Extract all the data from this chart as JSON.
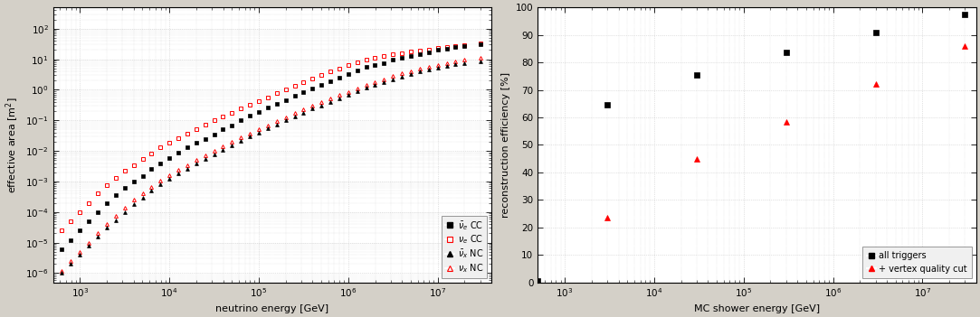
{
  "left": {
    "nue_bar_CC_x": [
      630,
      794,
      1000,
      1259,
      1585,
      1995,
      2512,
      3162,
      3981,
      5012,
      6310,
      7943,
      10000,
      12589,
      15849,
      19953,
      25119,
      31623,
      39811,
      50119,
      63096,
      79433,
      100000,
      125893,
      158489,
      199526,
      251189,
      316228,
      398107,
      501187,
      630957,
      794328,
      1000000,
      1258925,
      1584893,
      1995262,
      2511886,
      3162278,
      3981072,
      5011872,
      6309573,
      7943282,
      10000000,
      12589254,
      15848932,
      19952623,
      30000000
    ],
    "nue_bar_CC_y": [
      6e-06,
      1.2e-05,
      2.5e-05,
      5e-05,
      0.0001,
      0.0002,
      0.00035,
      0.0006,
      0.001,
      0.0015,
      0.0025,
      0.004,
      0.006,
      0.009,
      0.013,
      0.018,
      0.025,
      0.035,
      0.05,
      0.07,
      0.1,
      0.14,
      0.19,
      0.26,
      0.35,
      0.47,
      0.63,
      0.83,
      1.1,
      1.45,
      1.9,
      2.5,
      3.2,
      4.2,
      5.5,
      6.5,
      7.5,
      9.5,
      11,
      13,
      15,
      17,
      20,
      22,
      25,
      27,
      30
    ],
    "nue_CC_x": [
      630,
      794,
      1000,
      1259,
      1585,
      1995,
      2512,
      3162,
      3981,
      5012,
      6310,
      7943,
      10000,
      12589,
      15849,
      19953,
      25119,
      31623,
      39811,
      50119,
      63096,
      79433,
      100000,
      125893,
      158489,
      199526,
      251189,
      316228,
      398107,
      501187,
      630957,
      794328,
      1000000,
      1258925,
      1584893,
      1995262,
      2511886,
      3162278,
      3981072,
      5011872,
      6309573,
      7943282,
      10000000,
      12589254,
      15848932,
      19952623,
      30000000
    ],
    "nue_CC_y": [
      2.5e-05,
      5e-05,
      0.0001,
      0.0002,
      0.0004,
      0.00075,
      0.0013,
      0.0022,
      0.0035,
      0.0055,
      0.0085,
      0.013,
      0.019,
      0.027,
      0.038,
      0.053,
      0.072,
      0.1,
      0.135,
      0.18,
      0.24,
      0.32,
      0.43,
      0.57,
      0.76,
      1.0,
      1.33,
      1.75,
      2.3,
      3.0,
      3.9,
      5.0,
      6.4,
      8.1,
      10,
      11.5,
      13,
      14.5,
      16,
      17.5,
      19,
      21,
      23,
      25,
      27,
      29,
      33
    ],
    "nux_bar_NC_x": [
      630,
      794,
      1000,
      1259,
      1585,
      1995,
      2512,
      3162,
      3981,
      5012,
      6310,
      7943,
      10000,
      12589,
      15849,
      19953,
      25119,
      31623,
      39811,
      50119,
      63096,
      79433,
      100000,
      125893,
      158489,
      199526,
      251189,
      316228,
      398107,
      501187,
      630957,
      794328,
      1000000,
      1258925,
      1584893,
      1995262,
      2511886,
      3162278,
      3981072,
      5011872,
      6309573,
      7943282,
      10000000,
      12589254,
      15848932,
      19952623,
      30000000
    ],
    "nux_bar_NC_y": [
      1e-06,
      2e-06,
      4e-06,
      8e-06,
      1.6e-05,
      3e-05,
      5.5e-05,
      0.0001,
      0.00018,
      0.0003,
      0.0005,
      0.0008,
      0.0012,
      0.0018,
      0.0026,
      0.0038,
      0.0055,
      0.0078,
      0.011,
      0.015,
      0.021,
      0.029,
      0.04,
      0.055,
      0.075,
      0.1,
      0.135,
      0.18,
      0.24,
      0.31,
      0.41,
      0.54,
      0.7,
      0.9,
      1.15,
      1.45,
      1.8,
      2.2,
      2.7,
      3.3,
      3.9,
      4.6,
      5.3,
      6.0,
      6.8,
      7.5,
      8.5
    ],
    "nux_NC_x": [
      630,
      794,
      1000,
      1259,
      1585,
      1995,
      2512,
      3162,
      3981,
      5012,
      6310,
      7943,
      10000,
      12589,
      15849,
      19953,
      25119,
      31623,
      39811,
      50119,
      63096,
      79433,
      100000,
      125893,
      158489,
      199526,
      251189,
      316228,
      398107,
      501187,
      630957,
      794328,
      1000000,
      1258925,
      1584893,
      1995262,
      2511886,
      3162278,
      3981072,
      5011872,
      6309573,
      7943282,
      10000000,
      12589254,
      15848932,
      19952623,
      30000000
    ],
    "nux_NC_y": [
      1.2e-06,
      2.5e-06,
      5e-06,
      1e-05,
      2e-05,
      4e-05,
      7.5e-05,
      0.00014,
      0.00025,
      0.0004,
      0.00065,
      0.00105,
      0.0016,
      0.0024,
      0.0035,
      0.005,
      0.0072,
      0.01,
      0.014,
      0.02,
      0.028,
      0.038,
      0.052,
      0.07,
      0.095,
      0.128,
      0.17,
      0.225,
      0.3,
      0.39,
      0.51,
      0.67,
      0.87,
      1.12,
      1.43,
      1.8,
      2.2,
      2.8,
      3.4,
      4.1,
      4.9,
      5.8,
      6.7,
      7.6,
      8.6,
      9.6,
      11
    ],
    "xlim": [
      500,
      40000000.0
    ],
    "ylim": [
      5e-07,
      500
    ],
    "xlabel": "neutrino energy [GeV]",
    "ylabel": "effective area [m$^2$]"
  },
  "right": {
    "all_triggers_x": [
      500,
      3000,
      30000,
      300000,
      3000000,
      30000000
    ],
    "all_triggers_y": [
      0.37,
      64.5,
      75.5,
      83.5,
      91,
      97.5
    ],
    "vertex_cut_x": [
      500,
      3000,
      30000,
      300000,
      3000000,
      30000000
    ],
    "vertex_cut_y": [
      0.5,
      23.5,
      45,
      58.5,
      72,
      86
    ],
    "xlim": [
      500,
      40000000.0
    ],
    "ylim": [
      0,
      100
    ],
    "xlabel": "MC shower energy [GeV]",
    "ylabel": "reconstruction efficiency [%]"
  },
  "bg_color": "#d4d0c8",
  "plot_bg_color": "#ffffff",
  "grid_color": "#c8c8c8",
  "legend_bg": "#f0f0f0"
}
